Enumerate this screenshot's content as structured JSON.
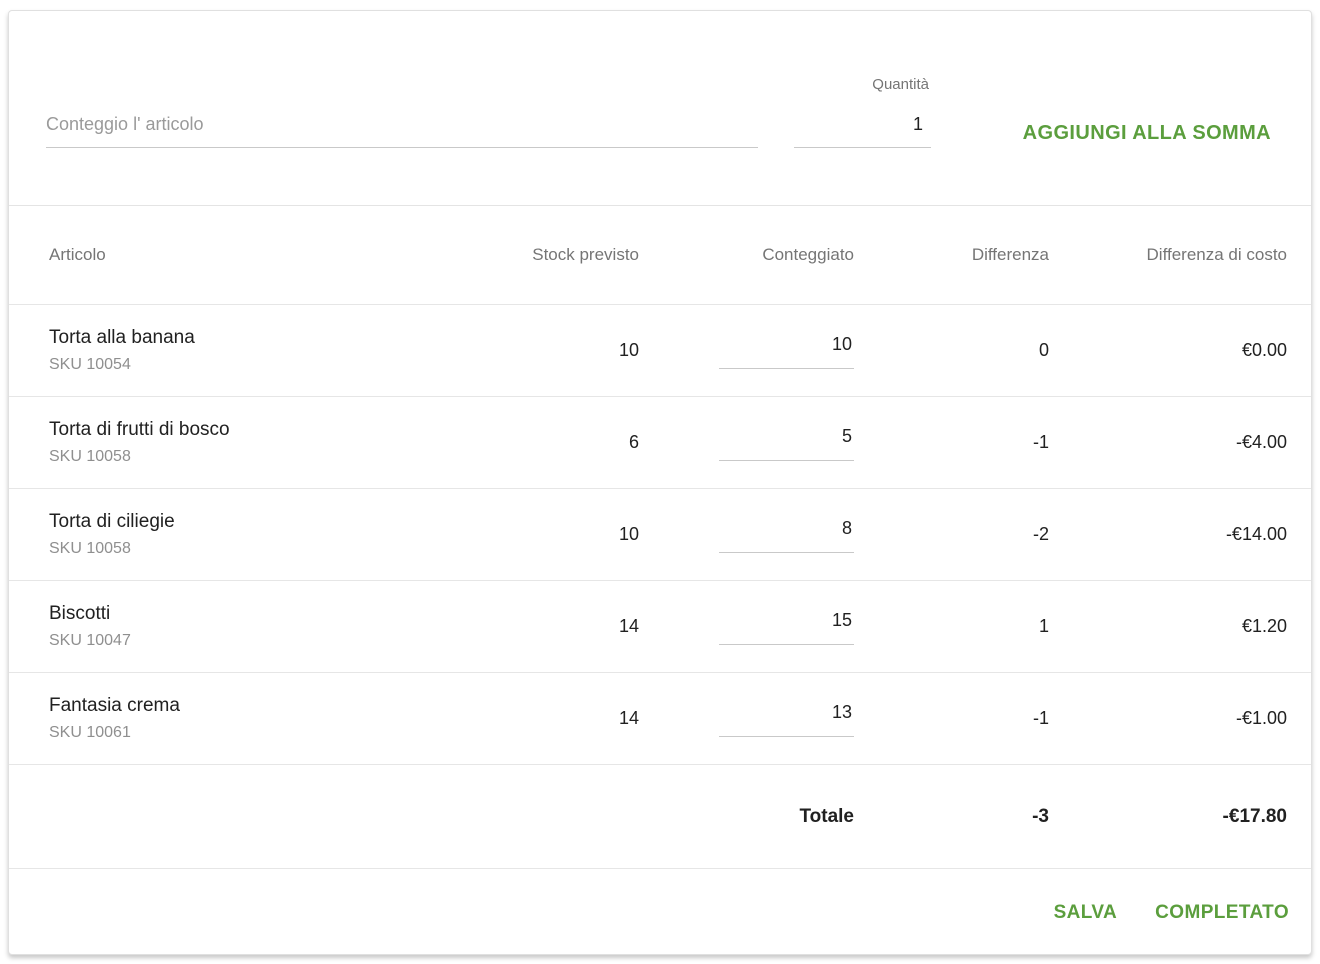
{
  "accent_color": "#5b9e3d",
  "add_form": {
    "item_input_placeholder": "Conteggio l' articolo",
    "quantity_label": "Quantità",
    "quantity_value": "1",
    "add_button_label": "AGGIUNGI ALLA SOMMA"
  },
  "table": {
    "columns": {
      "article": "Articolo",
      "expected": "Stock previsto",
      "counted": "Conteggiato",
      "difference": "Differenza",
      "cost_difference": "Differenza di costo"
    },
    "rows": [
      {
        "name": "Torta alla banana",
        "sku": "SKU 10054",
        "expected": "10",
        "counted": "10",
        "difference": "0",
        "cost_difference": "€0.00"
      },
      {
        "name": "Torta di frutti di bosco",
        "sku": "SKU 10058",
        "expected": "6",
        "counted": "5",
        "difference": "-1",
        "cost_difference": "-€4.00"
      },
      {
        "name": "Torta di ciliegie",
        "sku": "SKU 10058",
        "expected": "10",
        "counted": "8",
        "difference": "-2",
        "cost_difference": "-€14.00"
      },
      {
        "name": "Biscotti",
        "sku": "SKU 10047",
        "expected": "14",
        "counted": "15",
        "difference": "1",
        "cost_difference": "€1.20"
      },
      {
        "name": "Fantasia crema",
        "sku": "SKU 10061",
        "expected": "14",
        "counted": "13",
        "difference": "-1",
        "cost_difference": "-€1.00"
      }
    ],
    "total": {
      "label": "Totale",
      "difference": "-3",
      "cost_difference": "-€17.80"
    }
  },
  "footer": {
    "save_label": "SALVA",
    "complete_label": "COMPLETATO"
  }
}
